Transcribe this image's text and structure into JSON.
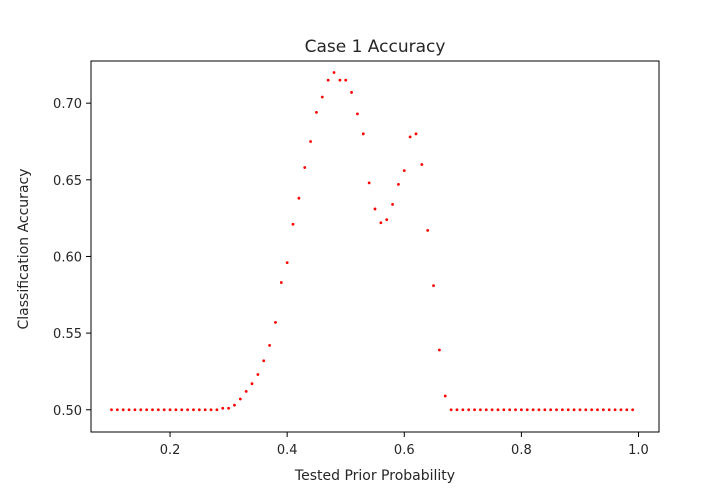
{
  "chart_data": {
    "type": "scatter",
    "title": "Case 1 Accuracy",
    "xlabel": "Tested Prior Probability",
    "ylabel": "Classification Accuracy",
    "xlim": [
      0.065,
      1.035
    ],
    "ylim": [
      0.4855,
      0.7275
    ],
    "xticks": [
      0.2,
      0.4,
      0.6,
      0.8,
      1.0
    ],
    "xtick_labels": [
      "0.2",
      "0.4",
      "0.6",
      "0.8",
      "1.0"
    ],
    "yticks": [
      0.5,
      0.55,
      0.6,
      0.65,
      0.7
    ],
    "ytick_labels": [
      "0.50",
      "0.55",
      "0.60",
      "0.65",
      "0.70"
    ],
    "grid": false,
    "marker_color": "#ff0000",
    "series": [
      {
        "x": [
          0.1,
          0.11,
          0.12,
          0.13,
          0.14,
          0.15,
          0.16,
          0.17,
          0.18,
          0.19,
          0.2,
          0.21,
          0.22,
          0.23,
          0.24,
          0.25,
          0.26,
          0.27,
          0.28,
          0.29,
          0.3,
          0.31,
          0.32,
          0.33,
          0.34,
          0.35,
          0.36,
          0.37,
          0.38,
          0.39,
          0.4,
          0.41,
          0.42,
          0.43,
          0.44,
          0.45,
          0.46,
          0.47,
          0.48,
          0.49,
          0.5,
          0.51,
          0.52,
          0.53,
          0.54,
          0.55,
          0.56,
          0.57,
          0.58,
          0.59,
          0.6,
          0.61,
          0.62,
          0.63,
          0.64,
          0.65,
          0.66,
          0.67,
          0.68,
          0.69,
          0.7,
          0.71,
          0.72,
          0.73,
          0.74,
          0.75,
          0.76,
          0.77,
          0.78,
          0.79,
          0.8,
          0.81,
          0.82,
          0.83,
          0.84,
          0.85,
          0.86,
          0.87,
          0.88,
          0.89,
          0.9,
          0.91,
          0.92,
          0.93,
          0.94,
          0.95,
          0.96,
          0.97,
          0.98,
          0.99
        ],
        "y": [
          0.5,
          0.5,
          0.5,
          0.5,
          0.5,
          0.5,
          0.5,
          0.5,
          0.5,
          0.5,
          0.5,
          0.5,
          0.5,
          0.5,
          0.5,
          0.5,
          0.5,
          0.5,
          0.5,
          0.501,
          0.501,
          0.503,
          0.507,
          0.512,
          0.517,
          0.523,
          0.532,
          0.542,
          0.557,
          0.583,
          0.596,
          0.621,
          0.638,
          0.658,
          0.675,
          0.694,
          0.704,
          0.715,
          0.72,
          0.715,
          0.715,
          0.707,
          0.693,
          0.68,
          0.648,
          0.631,
          0.622,
          0.624,
          0.634,
          0.647,
          0.656,
          0.678,
          0.68,
          0.66,
          0.617,
          0.581,
          0.539,
          0.509,
          0.5,
          0.5,
          0.5,
          0.5,
          0.5,
          0.5,
          0.5,
          0.5,
          0.5,
          0.5,
          0.5,
          0.5,
          0.5,
          0.5,
          0.5,
          0.5,
          0.5,
          0.5,
          0.5,
          0.5,
          0.5,
          0.5,
          0.5,
          0.5,
          0.5,
          0.5,
          0.5,
          0.5,
          0.5,
          0.5,
          0.5,
          0.5
        ]
      }
    ]
  }
}
